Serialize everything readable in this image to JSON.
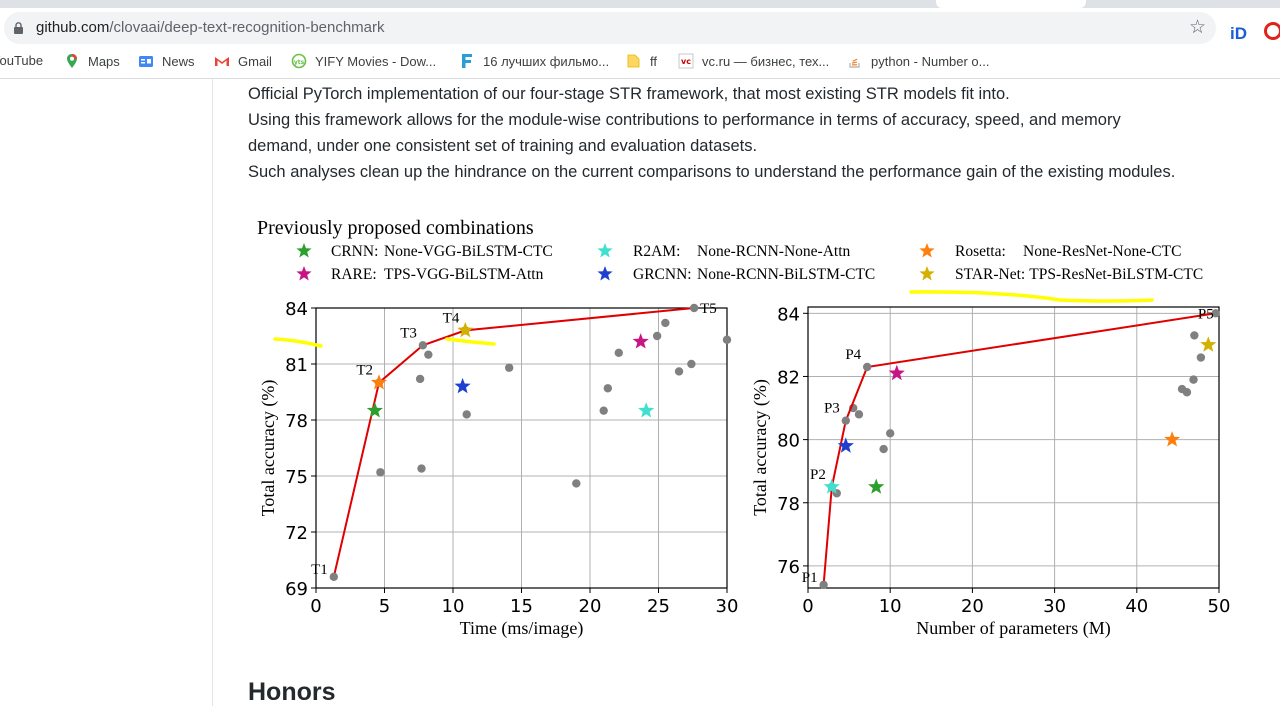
{
  "browser": {
    "url_host": "github.com",
    "url_path": "/clovaai/deep-text-recognition-benchmark",
    "bookmarks": [
      {
        "label": "YouTube",
        "icon": "youtube-icon"
      },
      {
        "label": "Maps",
        "icon": "maps-pin-icon"
      },
      {
        "label": "News",
        "icon": "google-news-icon"
      },
      {
        "label": "Gmail",
        "icon": "gmail-icon"
      },
      {
        "label": "YIFY Movies - Dow...",
        "icon": "yts-icon"
      },
      {
        "label": "16 лучших фильмо...",
        "icon": "f-logo-icon"
      },
      {
        "label": "ff",
        "icon": "folder-icon"
      },
      {
        "label": "vc.ru — бизнес, тех...",
        "icon": "vc-icon"
      },
      {
        "label": "python - Number o...",
        "icon": "stackoverflow-icon"
      }
    ]
  },
  "readme": {
    "lines": [
      "Official PyTorch implementation of our four-stage STR framework, that most existing STR models fit into.",
      "Using this framework allows for the module-wise contributions to performance in terms of accuracy, speed, and memory",
      "demand, under one consistent set of training and evaluation datasets.",
      "Such analyses clean up the hindrance on the current comparisons to understand the performance gain of the existing modules."
    ],
    "next_heading": "Honors"
  },
  "figure": {
    "legend_title": "Previously proposed combinations",
    "legend": [
      {
        "marker": "★",
        "color": "#2ca02c",
        "name": "CRNN:",
        "config": "None-VGG-BiLSTM-CTC"
      },
      {
        "marker": "★",
        "color": "#40e0d0",
        "name": "R2AM:",
        "config": "None-RCNN-None-Attn"
      },
      {
        "marker": "★",
        "color": "#ff7f0e",
        "name": "Rosetta:",
        "config": "None-ResNet-None-CTC"
      },
      {
        "marker": "★",
        "color": "#c71585",
        "name": "RARE:",
        "config": "TPS-VGG-BiLSTM-Attn"
      },
      {
        "marker": "★",
        "color": "#1f3fd0",
        "name": "GRCNN:",
        "config": "None-RCNN-BiLSTM-CTC"
      },
      {
        "marker": "★",
        "color": "#d4b000",
        "name": "STAR-Net:",
        "config": "TPS-ResNet-BiLSTM-CTC"
      }
    ],
    "colors": {
      "frontier": "#e00000",
      "points": "#808080",
      "highlighter": "#ffff00",
      "grid": "#b0b0b0"
    }
  },
  "chart_data": [
    {
      "type": "scatter",
      "xlabel": "Time (ms/image)",
      "ylabel": "Total accuracy (%)",
      "xlim": [
        0,
        30
      ],
      "ylim": [
        69,
        84
      ],
      "xticks": [
        "0",
        "5",
        "10",
        "15",
        "20",
        "25",
        "30"
      ],
      "yticks": [
        "69",
        "72",
        "75",
        "78",
        "81",
        "84"
      ],
      "grid": true,
      "frontier": [
        {
          "label": "T1",
          "x": 1.3,
          "y": 69.6
        },
        {
          "label": "T2",
          "x": 4.6,
          "y": 80.0
        },
        {
          "label": "T3",
          "x": 7.8,
          "y": 82.0
        },
        {
          "label": "T4",
          "x": 10.9,
          "y": 82.8
        },
        {
          "label": "T5",
          "x": 27.6,
          "y": 84.0
        }
      ],
      "points": [
        {
          "x": 4.7,
          "y": 75.2
        },
        {
          "x": 7.6,
          "y": 80.2
        },
        {
          "x": 7.7,
          "y": 75.4
        },
        {
          "x": 8.2,
          "y": 81.5
        },
        {
          "x": 11.0,
          "y": 78.3
        },
        {
          "x": 14.1,
          "y": 80.8
        },
        {
          "x": 19.0,
          "y": 74.6
        },
        {
          "x": 21.0,
          "y": 78.5
        },
        {
          "x": 21.3,
          "y": 79.7
        },
        {
          "x": 22.1,
          "y": 81.6
        },
        {
          "x": 24.9,
          "y": 82.5
        },
        {
          "x": 25.5,
          "y": 83.2
        },
        {
          "x": 26.5,
          "y": 80.6
        },
        {
          "x": 27.4,
          "y": 81.0
        },
        {
          "x": 30.0,
          "y": 82.3
        }
      ],
      "stars": [
        {
          "model": "CRNN",
          "x": 4.3,
          "y": 78.5
        },
        {
          "model": "Rosetta",
          "x": 4.6,
          "y": 80.0
        },
        {
          "model": "GRCNN",
          "x": 10.7,
          "y": 79.8
        },
        {
          "model": "STAR-Net",
          "x": 10.9,
          "y": 82.8
        },
        {
          "model": "RARE",
          "x": 23.7,
          "y": 82.2
        },
        {
          "model": "R2AM",
          "x": 24.1,
          "y": 78.5
        }
      ]
    },
    {
      "type": "scatter",
      "xlabel": "Number of parameters (M)",
      "ylabel": "Total accuracy (%)",
      "xlim": [
        0,
        50
      ],
      "ylim": [
        75.3,
        84.2
      ],
      "xticks": [
        "0",
        "10",
        "20",
        "30",
        "40",
        "50"
      ],
      "yticks": [
        "76",
        "78",
        "80",
        "82",
        "84"
      ],
      "grid": true,
      "frontier": [
        {
          "label": "P1",
          "x": 1.9,
          "y": 75.4
        },
        {
          "label": "P2",
          "x": 2.9,
          "y": 78.5
        },
        {
          "label": "P3",
          "x": 4.6,
          "y": 80.6
        },
        {
          "label": "P4",
          "x": 7.2,
          "y": 82.3
        },
        {
          "label": "P5",
          "x": 49.6,
          "y": 84.0
        }
      ],
      "points": [
        {
          "x": 3.5,
          "y": 78.3
        },
        {
          "x": 5.5,
          "y": 81.0
        },
        {
          "x": 6.2,
          "y": 80.8
        },
        {
          "x": 9.2,
          "y": 79.7
        },
        {
          "x": 10.0,
          "y": 80.2
        },
        {
          "x": 45.5,
          "y": 81.6
        },
        {
          "x": 46.1,
          "y": 81.5
        },
        {
          "x": 46.9,
          "y": 81.9
        },
        {
          "x": 47.0,
          "y": 83.3
        },
        {
          "x": 47.8,
          "y": 82.6
        }
      ],
      "stars": [
        {
          "model": "R2AM",
          "x": 2.9,
          "y": 78.5
        },
        {
          "model": "GRCNN",
          "x": 4.6,
          "y": 79.8
        },
        {
          "model": "CRNN",
          "x": 8.3,
          "y": 78.5
        },
        {
          "model": "RARE",
          "x": 10.8,
          "y": 82.1
        },
        {
          "model": "Rosetta",
          "x": 44.3,
          "y": 80.0
        },
        {
          "model": "STAR-Net",
          "x": 48.7,
          "y": 83.0
        }
      ]
    }
  ]
}
